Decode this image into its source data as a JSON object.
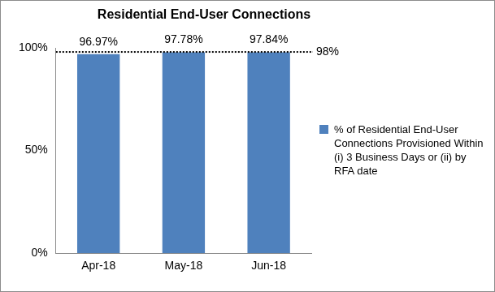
{
  "chart_data": {
    "type": "bar",
    "title": "Residential End-User Connections",
    "categories": [
      "Apr-18",
      "May-18",
      "Jun-18"
    ],
    "series": [
      {
        "name": "% of Residential End-User Connections Provisioned Within (i) 3 Business Days or (ii) by RFA date",
        "color": "#4f81bd",
        "values": [
          96.97,
          97.78,
          97.84
        ],
        "value_labels": [
          "96.97%",
          "97.78%",
          "97.84%"
        ]
      }
    ],
    "ylim": [
      0,
      100
    ],
    "yticks": [
      {
        "value": 0,
        "label": "0%"
      },
      {
        "value": 50,
        "label": "50%"
      },
      {
        "value": 100,
        "label": "100%"
      }
    ],
    "reference_line": {
      "value": 98,
      "label": "98%",
      "line_style": "dotted"
    },
    "data_labels": true,
    "grid": false,
    "legend": "right"
  }
}
